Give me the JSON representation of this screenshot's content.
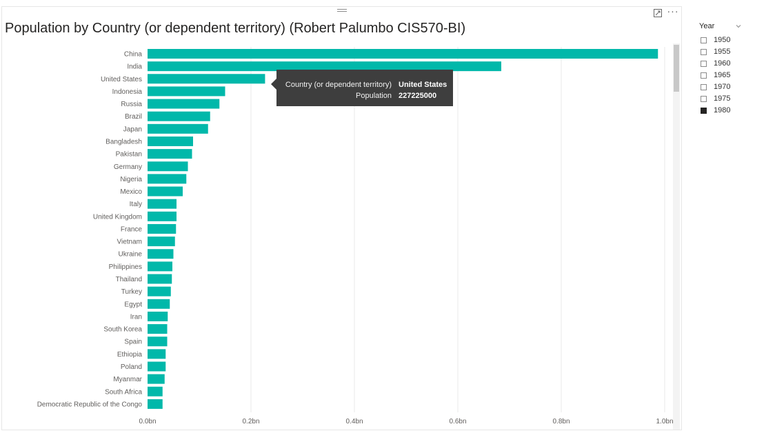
{
  "visual": {
    "title": "Population by Country (or dependent territory) (Robert Palumbo CIS570-BI)",
    "more_options_glyph": "···",
    "icons": [
      "drag-handle-icon",
      "focus-mode-icon",
      "more-options-icon"
    ]
  },
  "chart_data": {
    "type": "bar",
    "orientation": "horizontal",
    "title": "Population by Country (or dependent territory) (Robert Palumbo CIS570-BI)",
    "bar_color": "#01B8AA",
    "categories": [
      "China",
      "India",
      "United States",
      "Indonesia",
      "Russia",
      "Brazil",
      "Japan",
      "Bangladesh",
      "Pakistan",
      "Germany",
      "Nigeria",
      "Mexico",
      "Italy",
      "United Kingdom",
      "France",
      "Vietnam",
      "Ukraine",
      "Philippines",
      "Thailand",
      "Turkey",
      "Egypt",
      "Iran",
      "South Korea",
      "Spain",
      "Ethiopia",
      "Poland",
      "Myanmar",
      "South Africa",
      "Democratic Republic of the Congo"
    ],
    "values": [
      987000000,
      684000000,
      227225000,
      150000000,
      139000000,
      121000000,
      117000000,
      88000000,
      86000000,
      78000000,
      75000000,
      68000000,
      56000000,
      56000000,
      55000000,
      53000000,
      50000000,
      48000000,
      47000000,
      45000000,
      43000000,
      39000000,
      38000000,
      38000000,
      35000000,
      35000000,
      33000000,
      29000000,
      29000000
    ],
    "xlim": [
      0,
      1000000000
    ],
    "x_ticks": [
      "0.0bn",
      "0.2bn",
      "0.4bn",
      "0.6bn",
      "0.8bn",
      "1.0bn"
    ],
    "xlabel": "",
    "ylabel": "",
    "grid": true
  },
  "tooltip": {
    "rows": [
      {
        "key": "Country (or dependent territory)",
        "value": "United States"
      },
      {
        "key": "Population",
        "value": "227225000"
      }
    ]
  },
  "slicer": {
    "header": "Year",
    "items": [
      {
        "label": "1950",
        "checked": false
      },
      {
        "label": "1955",
        "checked": false
      },
      {
        "label": "1960",
        "checked": false
      },
      {
        "label": "1965",
        "checked": false
      },
      {
        "label": "1970",
        "checked": false
      },
      {
        "label": "1975",
        "checked": false
      },
      {
        "label": "1980",
        "checked": true
      }
    ]
  }
}
